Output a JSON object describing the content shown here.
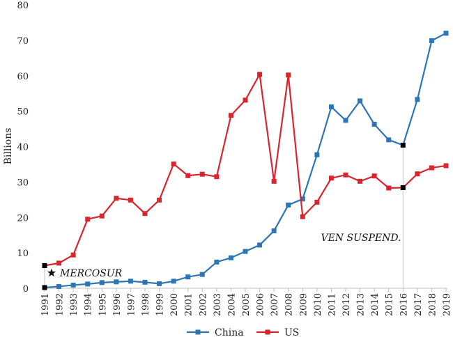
{
  "chart_data": {
    "type": "line",
    "title": "",
    "xlabel": "",
    "ylabel": "Billions",
    "ylim": [
      0,
      80
    ],
    "yticks": [
      0,
      10,
      20,
      30,
      40,
      50,
      60,
      70,
      80
    ],
    "categories": [
      "1991",
      "1992",
      "1993",
      "1994",
      "1995",
      "1996",
      "1997",
      "1998",
      "1999",
      "2000",
      "2001",
      "2002",
      "2003",
      "2004",
      "2005",
      "2006",
      "2007",
      "2008",
      "2009",
      "2010",
      "2011",
      "2012",
      "2013",
      "2014",
      "2015",
      "2016",
      "2017",
      "2018",
      "2019"
    ],
    "series": [
      {
        "name": "China",
        "color": "#2e75b6",
        "values": [
          0.2,
          0.5,
          0.9,
          1.2,
          1.6,
          1.8,
          2.0,
          1.7,
          1.3,
          2.0,
          3.2,
          3.9,
          7.4,
          8.6,
          10.4,
          12.2,
          16.2,
          23.5,
          25.2,
          37.7,
          51.2,
          47.4,
          52.9,
          46.3,
          41.9,
          40.4,
          53.3,
          69.9,
          72.0
        ]
      },
      {
        "name": "US",
        "color": "#d9262e",
        "values": [
          6.4,
          7.1,
          9.4,
          19.5,
          20.4,
          25.4,
          24.9,
          21.1,
          24.9,
          35.1,
          31.8,
          32.2,
          31.5,
          48.8,
          53.1,
          60.4,
          30.2,
          60.2,
          20.2,
          24.3,
          31.1,
          32.0,
          30.2,
          31.7,
          28.3,
          28.4,
          32.3,
          34.0,
          34.6
        ]
      }
    ],
    "legend_position": "bottom",
    "grid": false,
    "annotations": [
      {
        "text": "MERCOSUR",
        "year": "1991",
        "marker": "star"
      },
      {
        "text": "VEN SUSPEND.",
        "year": "2016"
      }
    ]
  }
}
